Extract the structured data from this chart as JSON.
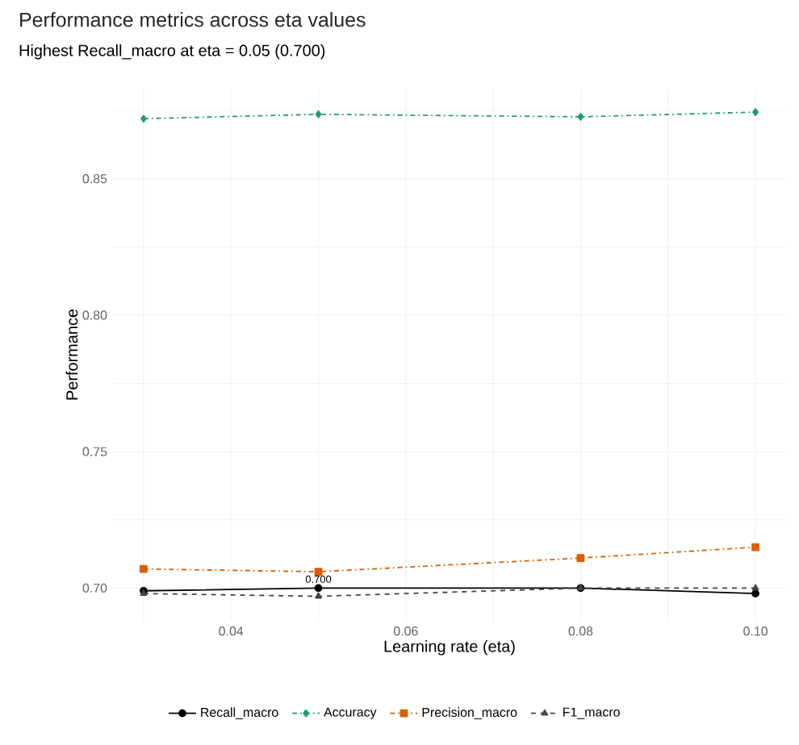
{
  "chart_data": {
    "type": "line",
    "title": "Performance metrics across eta values",
    "subtitle": "Highest Recall_macro at eta = 0.05 (0.700)",
    "xlabel": "Learning rate (eta)",
    "ylabel": "Performance",
    "x": [
      0.03,
      0.05,
      0.08,
      0.1
    ],
    "series": [
      {
        "name": "Recall_macro",
        "color": "#000000",
        "values": [
          0.699,
          0.7,
          0.7,
          0.698
        ],
        "marker": "circle",
        "line_style": "solid"
      },
      {
        "name": "Accuracy",
        "color": "#1b9e77",
        "values": [
          0.872,
          0.8736,
          0.8727,
          0.8744
        ],
        "marker": "diamond",
        "line_style": "dashdot"
      },
      {
        "name": "Precision_macro",
        "color": "#d95f02",
        "values": [
          0.707,
          0.706,
          0.711,
          0.715
        ],
        "marker": "square",
        "line_style": "dashdot"
      },
      {
        "name": "F1_macro",
        "color": "#444444",
        "values": [
          0.698,
          0.697,
          0.7,
          0.7
        ],
        "marker": "triangle",
        "line_style": "dashed"
      }
    ],
    "xlim": [
      0.0265,
      0.1035
    ],
    "ylim": [
      0.688,
      0.883
    ],
    "xticks": [
      {
        "value": 0.03,
        "label": null
      },
      0.04,
      {
        "value": 0.05,
        "label": null
      },
      0.06,
      {
        "value": 0.07,
        "label": null
      },
      0.08,
      {
        "value": 0.09,
        "label": null
      },
      {
        "value": 0.1,
        "label": "0.10"
      }
    ],
    "yticks": [
      {
        "value": 0.7,
        "label": "0.70"
      },
      {
        "value": 0.725,
        "label": null
      },
      0.75,
      {
        "value": 0.775,
        "label": null
      },
      {
        "value": 0.8,
        "label": "0.80"
      },
      {
        "value": 0.825,
        "label": null
      },
      0.85,
      {
        "value": 0.875,
        "label": null
      }
    ],
    "annotations": [
      {
        "text": "0.700",
        "x": 0.05,
        "y": 0.7
      }
    ],
    "grid": true,
    "legend": "bottom"
  }
}
